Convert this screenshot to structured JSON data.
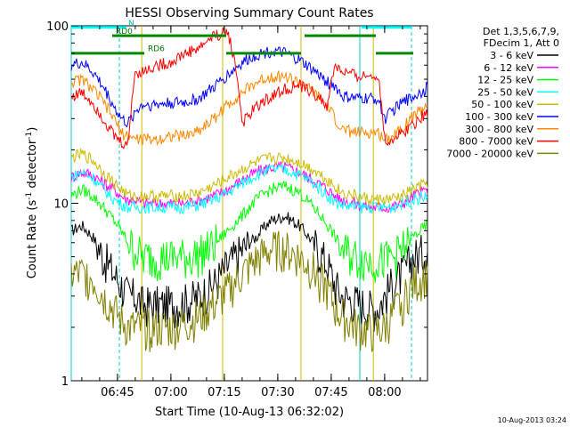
{
  "chart_data": {
    "type": "line",
    "title": "HESSI Observing Summary Count Rates",
    "xlabel": "Start Time (10-Aug-13 06:32:02)",
    "ylabel_main": "Count Rate (s",
    "ylabel_sup": "-1",
    "ylabel_tail": " detector",
    "ylabel_end": ")",
    "x_range_minutes": [
      0,
      100
    ],
    "ylim": [
      1,
      100
    ],
    "yscale": "log",
    "x_ticks": [
      {
        "label": "06:45",
        "value": 12.97
      },
      {
        "label": "07:00",
        "value": 27.97
      },
      {
        "label": "07:15",
        "value": 42.97
      },
      {
        "label": "07:30",
        "value": 57.97
      },
      {
        "label": "07:45",
        "value": 72.97
      },
      {
        "label": "08:00",
        "value": 87.97
      }
    ],
    "y_ticks": [
      {
        "label": "1",
        "value": 1
      },
      {
        "label": "10",
        "value": 10
      },
      {
        "label": "100",
        "value": 100
      }
    ],
    "legend_title_lines": [
      "Det 1,3,5,6,7,9,",
      "FDecim 1, Att 0"
    ],
    "series": [
      {
        "name": "3 - 6 keV",
        "color": "#000000",
        "x": [
          0,
          3,
          6,
          9,
          12,
          14,
          16,
          18,
          20,
          24,
          28,
          32,
          36,
          40,
          44,
          48,
          52,
          56,
          60,
          64,
          68,
          72,
          74,
          76,
          80,
          84,
          86,
          88,
          90,
          93,
          96,
          100
        ],
        "values": [
          7,
          7.5,
          6.5,
          5,
          4,
          3.5,
          3,
          3,
          2.7,
          2.7,
          2.7,
          2.8,
          3,
          3.5,
          4.5,
          5.5,
          6.5,
          8,
          8.5,
          7.5,
          6,
          4.5,
          3.5,
          3,
          2.8,
          2.6,
          2.6,
          3,
          3.5,
          4,
          5,
          5.5
        ]
      },
      {
        "name": "6 - 12 keV",
        "color": "#ff00ff",
        "x": [
          0,
          3,
          6,
          9,
          12,
          14,
          16,
          18,
          20,
          24,
          28,
          32,
          36,
          40,
          44,
          48,
          52,
          56,
          60,
          64,
          68,
          72,
          74,
          76,
          80,
          84,
          86,
          88,
          90,
          93,
          96,
          100
        ],
        "values": [
          14,
          15,
          14.5,
          13,
          12,
          11,
          10.5,
          10.5,
          10,
          10,
          10,
          10,
          10.5,
          11,
          12,
          13.5,
          15,
          16,
          16,
          15,
          13.5,
          12,
          11,
          10.5,
          10,
          9.5,
          9.5,
          9.5,
          9.5,
          10,
          11,
          12
        ]
      },
      {
        "name": "12 - 25 keV",
        "color": "#00ff00",
        "x": [
          0,
          3,
          6,
          9,
          12,
          14,
          16,
          18,
          20,
          24,
          28,
          32,
          36,
          40,
          44,
          48,
          52,
          56,
          60,
          64,
          68,
          72,
          74,
          76,
          80,
          84,
          86,
          88,
          90,
          93,
          96,
          100
        ],
        "values": [
          11,
          12,
          11,
          9.5,
          8,
          7,
          6,
          5.5,
          5,
          5,
          5,
          5,
          5.2,
          5.8,
          7,
          8.5,
          10.5,
          12,
          12.5,
          11.5,
          9.5,
          7.5,
          6.5,
          5.5,
          5,
          4.8,
          4.8,
          4.8,
          5,
          5.5,
          6.5,
          7.5
        ]
      },
      {
        "name": "25 - 50 keV",
        "color": "#00ffff",
        "x": [
          0,
          3,
          6,
          9,
          12,
          14,
          16,
          18,
          20,
          24,
          28,
          32,
          36,
          40,
          44,
          48,
          52,
          56,
          60,
          64,
          68,
          72,
          74,
          76,
          80,
          84,
          86,
          88,
          90,
          93,
          96,
          100
        ],
        "values": [
          14,
          15,
          14,
          12,
          10.5,
          10,
          9.5,
          9.5,
          9.5,
          9.5,
          9.5,
          9.5,
          9.8,
          10.5,
          11.5,
          13,
          14.5,
          15.5,
          15.5,
          14.5,
          13,
          11,
          10.2,
          9.8,
          9.5,
          9.5,
          9.5,
          9.5,
          9.5,
          10,
          10.5,
          11
        ]
      },
      {
        "name": "50 - 100 keV",
        "color": "#ccbb00",
        "x": [
          0,
          3,
          6,
          9,
          12,
          14,
          16,
          18,
          20,
          24,
          28,
          32,
          36,
          40,
          44,
          48,
          52,
          56,
          60,
          64,
          68,
          72,
          74,
          76,
          80,
          84,
          86,
          88,
          90,
          93,
          96,
          100
        ],
        "values": [
          18,
          19,
          17.5,
          15,
          13,
          12,
          11,
          11,
          11,
          11,
          11,
          11,
          11.5,
          12.5,
          14,
          15.5,
          17,
          18,
          18,
          17,
          15.5,
          13.5,
          12.5,
          11.5,
          11,
          10.5,
          10.5,
          10.5,
          10.5,
          11,
          12,
          13
        ]
      },
      {
        "name": "100 - 300 keV",
        "color": "#0000ff",
        "x": [
          0,
          3,
          6,
          9,
          12,
          14,
          16,
          18,
          20,
          24,
          28,
          32,
          36,
          40,
          44,
          48,
          52,
          56,
          60,
          64,
          68,
          72,
          74,
          76,
          80,
          84,
          86,
          88,
          90,
          93,
          96,
          100
        ],
        "values": [
          60,
          62,
          55,
          45,
          35,
          30,
          28,
          33,
          36,
          36,
          37,
          37,
          39,
          45,
          53,
          62,
          69,
          72,
          70,
          64,
          56,
          48,
          46,
          40,
          39,
          39,
          39,
          30,
          33,
          37,
          40,
          45
        ]
      },
      {
        "name": "300 - 800 keV",
        "color": "#ff8800",
        "x": [
          0,
          3,
          6,
          9,
          12,
          14,
          16,
          18,
          20,
          24,
          28,
          32,
          36,
          40,
          44,
          48,
          52,
          56,
          60,
          64,
          68,
          72,
          74,
          76,
          80,
          84,
          86,
          88,
          90,
          93,
          96,
          100
        ],
        "values": [
          48,
          50,
          44,
          37,
          30,
          25,
          24,
          23,
          23,
          23,
          24,
          24,
          26,
          30,
          36,
          42,
          48,
          52,
          52,
          48,
          42,
          35,
          30,
          26,
          25,
          25,
          25,
          23,
          24,
          27,
          31,
          36
        ]
      },
      {
        "name": "800 - 7000 keV",
        "color": "#ff0000",
        "x": [
          0,
          3,
          6,
          9,
          12,
          14,
          16,
          18,
          20,
          24,
          28,
          32,
          36,
          40,
          44,
          48,
          52,
          56,
          60,
          64,
          68,
          72,
          74,
          76,
          80,
          84,
          86,
          88,
          90,
          93,
          96,
          100
        ],
        "values": [
          40,
          42,
          37,
          30,
          24,
          22,
          21,
          55,
          55,
          60,
          62,
          70,
          75,
          88,
          92,
          28,
          35,
          40,
          44,
          46,
          42,
          35,
          60,
          55,
          52,
          52,
          54,
          22,
          23,
          25,
          28,
          33
        ]
      },
      {
        "name": "7000 - 20000 keV",
        "color": "#808000",
        "x": [
          0,
          3,
          6,
          9,
          12,
          14,
          16,
          18,
          20,
          24,
          28,
          32,
          36,
          40,
          44,
          48,
          52,
          56,
          60,
          64,
          68,
          72,
          74,
          76,
          80,
          84,
          86,
          88,
          90,
          93,
          96,
          100
        ],
        "values": [
          4,
          4,
          3.8,
          3,
          2.5,
          2.2,
          2,
          2,
          2,
          2,
          2,
          2.1,
          2.3,
          2.7,
          3.2,
          4,
          4.8,
          5.5,
          5.5,
          5,
          4.2,
          3.2,
          2.6,
          2.3,
          2,
          1.9,
          1.9,
          2,
          2.3,
          2.8,
          3.5,
          4
        ]
      }
    ],
    "vertical_markers": [
      {
        "color": "#00cccc",
        "x": 0,
        "style": "solid"
      },
      {
        "color": "#00cccc",
        "x": 13.5,
        "style": "dashed"
      },
      {
        "color": "#ccbb00",
        "x": 19.8,
        "style": "solid"
      },
      {
        "color": "#ccbb00",
        "x": 42.5,
        "style": "solid"
      },
      {
        "color": "#ccbb00",
        "x": 64.5,
        "style": "solid"
      },
      {
        "color": "#ccbb00",
        "x": 84.8,
        "style": "solid"
      },
      {
        "color": "#00cccc",
        "x": 81.0,
        "style": "solid"
      },
      {
        "color": "#00cccc",
        "x": 95.5,
        "style": "dashed"
      }
    ],
    "status_bars": [
      {
        "label": "N",
        "color": "#00ffff",
        "y": 98,
        "segments": [
          [
            0,
            15.5
          ],
          [
            81.5,
            95.5
          ]
        ]
      },
      {
        "label": "RD0",
        "color": "#008800",
        "y": 88,
        "segments": [
          [
            11.5,
            43.5
          ],
          [
            65.5,
            85.5
          ]
        ]
      },
      {
        "label": "RD6",
        "color": "#008800",
        "y": 70,
        "segments": [
          [
            0,
            20.5
          ],
          [
            43.5,
            64.5
          ],
          [
            85.5,
            96
          ]
        ]
      }
    ],
    "bar_labels": [
      {
        "text": "N",
        "color": "#00bbbb",
        "x": 16.0,
        "y": 99
      },
      {
        "text": "RD0",
        "color": "#007700",
        "x": 12.5,
        "y": 89
      },
      {
        "text": "RD6",
        "color": "#007700",
        "x": 21.5,
        "y": 71
      }
    ],
    "footer_date": "10-Aug-2013 03:24"
  }
}
